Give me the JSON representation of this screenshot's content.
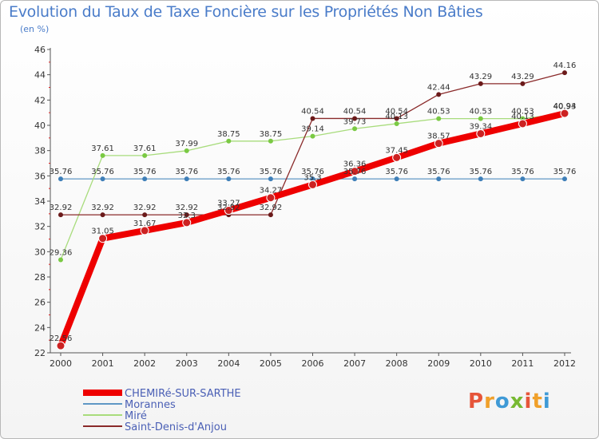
{
  "header": {
    "title": "Evolution du Taux de Taxe Foncière sur les Propriétés Non Bâties",
    "unit": "(en %)"
  },
  "logo": {
    "letters": [
      "P",
      "r",
      "o",
      "x",
      "i",
      "t",
      "i"
    ],
    "colors": [
      "#e6553a",
      "#f0a02a",
      "#3f9ad6",
      "#77b932",
      "#e6553a",
      "#f0a02a",
      "#3f9ad6"
    ]
  },
  "chart_data": {
    "type": "line",
    "title": "Evolution du Taux de Taxe Foncière sur les Propriétés Non Bâties",
    "ylabel": "(en %)",
    "xlabel": "",
    "x": [
      "2000",
      "2001",
      "2002",
      "2003",
      "2004",
      "2005",
      "2006",
      "2007",
      "2008",
      "2009",
      "2010",
      "2011",
      "2012"
    ],
    "ylim": [
      22,
      46
    ],
    "yticks": [
      22,
      24,
      26,
      28,
      30,
      32,
      34,
      36,
      38,
      40,
      42,
      44,
      46
    ],
    "grid": false,
    "legend": "bottom-left",
    "series": [
      {
        "name": "CHEMIRé-SUR-SARTHE",
        "color": "#ee0000",
        "marker": "#cc2222",
        "values": [
          22.56,
          31.05,
          31.67,
          32.3,
          33.27,
          34.27,
          35.3,
          36.36,
          37.45,
          38.57,
          39.34,
          40.13,
          40.94
        ],
        "labels": [
          "22.56",
          "31.05",
          "31.67",
          "32.3",
          "33.27",
          "34.27",
          "35.3",
          "36.36",
          "37.45",
          "38.57",
          "39.34",
          "40.13",
          "40.94"
        ]
      },
      {
        "name": "Morannes",
        "color": "#5f97c5",
        "marker": "#3f7fb8",
        "values": [
          35.76,
          35.76,
          35.76,
          35.76,
          35.76,
          35.76,
          35.76,
          35.76,
          35.76,
          35.76,
          35.76,
          35.76,
          35.76
        ],
        "labels": [
          "35.76",
          "35.76",
          "35.76",
          "35.76",
          "35.76",
          "35.76",
          "35.76",
          "35.76",
          "35.76",
          "35.76",
          "35.76",
          "35.76",
          "35.76"
        ]
      },
      {
        "name": "Miré",
        "color": "#a8dc7c",
        "marker": "#7ac943",
        "values": [
          29.36,
          37.61,
          37.61,
          37.99,
          38.75,
          38.75,
          39.14,
          39.73,
          40.13,
          40.53,
          40.53,
          40.53,
          40.93
        ],
        "labels": [
          "29.36",
          "37.61",
          "37.61",
          "37.99",
          "38.75",
          "38.75",
          "39.14",
          "39.73",
          "40.13",
          "40.53",
          "40.53",
          "40.53",
          "40.93"
        ]
      },
      {
        "name": "Saint-Denis-d'Anjou",
        "color": "#8a2a2a",
        "marker": "#6b1a1a",
        "values": [
          32.92,
          32.92,
          32.92,
          32.92,
          32.92,
          32.92,
          40.54,
          40.54,
          40.54,
          42.44,
          43.29,
          43.29,
          44.16
        ],
        "labels": [
          "32.92",
          "32.92",
          "32.92",
          "32.92",
          "32.92",
          "32.92",
          "40.54",
          "40.54",
          "40.54",
          "42.44",
          "43.29",
          "43.29",
          "44.16"
        ]
      }
    ]
  }
}
